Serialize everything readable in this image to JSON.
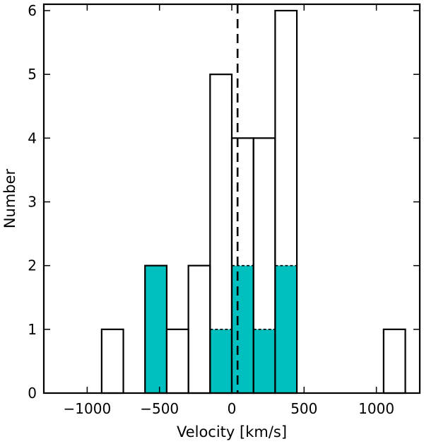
{
  "chart_data": {
    "type": "bar",
    "xlabel": "Velocity [km/s]",
    "ylabel": "Number",
    "xlim": [
      -1300,
      1300
    ],
    "ylim": [
      0,
      6.1
    ],
    "x_ticks": [
      -1000,
      -500,
      0,
      500,
      1000
    ],
    "x_tick_labels": [
      "−1000",
      "−500",
      "0",
      "500",
      "1000"
    ],
    "y_ticks": [
      0,
      1,
      2,
      3,
      4,
      5,
      6
    ],
    "y_tick_labels": [
      "0",
      "1",
      "2",
      "3",
      "4",
      "5",
      "6"
    ],
    "bin_edges": [
      -900,
      -750,
      -600,
      -450,
      -300,
      -150,
      0,
      150,
      300,
      450,
      600,
      750,
      900,
      1050,
      1200
    ],
    "series": [
      {
        "style": "outline",
        "values": [
          1,
          0,
          2,
          1,
          2,
          5,
          4,
          4,
          6,
          0,
          0,
          0,
          0,
          1
        ]
      },
      {
        "style": "filled-dashed",
        "values": [
          0,
          0,
          2,
          0,
          0,
          1,
          2,
          1,
          2,
          0,
          0,
          0,
          0,
          0
        ]
      }
    ],
    "reference_line": {
      "x": 40,
      "style": "dashed"
    },
    "colors": {
      "fill": "#00bfbf",
      "outline": "#000000",
      "reference": "#000000"
    },
    "grid": false,
    "legend": "none"
  }
}
